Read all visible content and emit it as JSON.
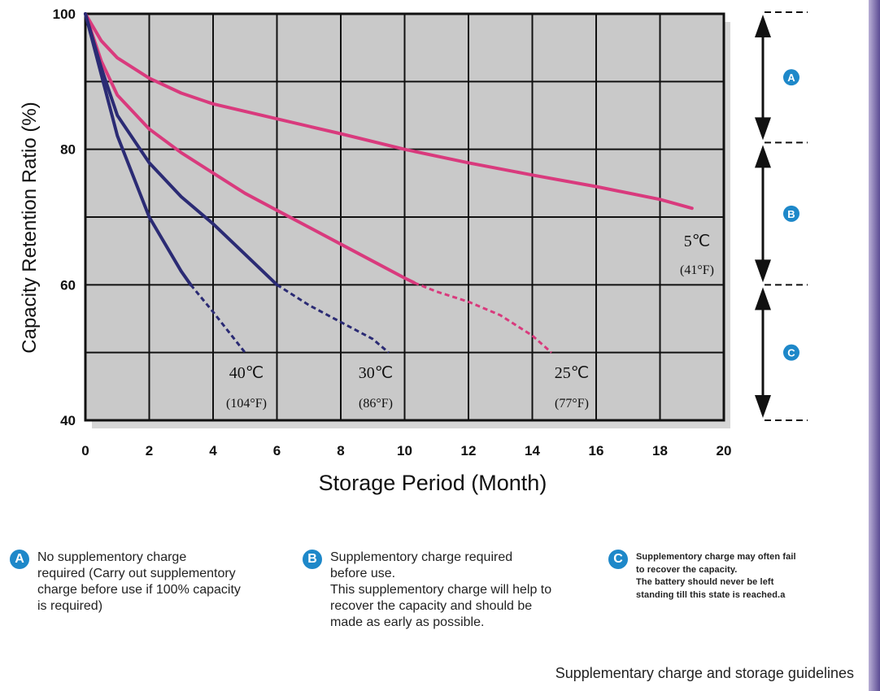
{
  "chart_data": {
    "type": "line",
    "xlabel": "Storage Period (Month)",
    "ylabel": "Capacity Retention Ratio (%)",
    "xlim": [
      0,
      20
    ],
    "ylim": [
      40,
      100
    ],
    "x_ticks": [
      "0",
      "2",
      "4",
      "6",
      "8",
      "10",
      "12",
      "14",
      "16",
      "18",
      "20"
    ],
    "y_ticks": [
      "40",
      "60",
      "80",
      "100"
    ],
    "grid": true,
    "series": [
      {
        "name": "5℃ (41°F)",
        "temp_label": "5℃",
        "f_label": "(41°F)",
        "color": "#d93a7d",
        "points": [
          [
            0,
            100
          ],
          [
            0.5,
            96
          ],
          [
            1,
            93.5
          ],
          [
            2,
            90.5
          ],
          [
            3,
            88.3
          ],
          [
            4,
            86.7
          ],
          [
            6,
            84.5
          ],
          [
            8,
            82.3
          ],
          [
            10,
            80
          ],
          [
            12,
            78
          ],
          [
            14,
            76.2
          ],
          [
            16,
            74.5
          ],
          [
            18,
            72.6
          ],
          [
            19,
            71.3
          ]
        ],
        "dashed_points": []
      },
      {
        "name": "25℃ (77°F)",
        "temp_label": "25℃",
        "f_label": "(77°F)",
        "color": "#d93a7d",
        "points": [
          [
            0,
            100
          ],
          [
            0.5,
            93
          ],
          [
            1,
            88
          ],
          [
            2,
            83
          ],
          [
            3,
            79.5
          ],
          [
            4,
            76.5
          ],
          [
            5,
            73.5
          ],
          [
            6,
            71
          ],
          [
            7,
            68.5
          ],
          [
            8,
            66
          ],
          [
            9,
            63.5
          ],
          [
            10,
            61
          ],
          [
            10.3,
            60.3
          ]
        ],
        "dashed_points": [
          [
            10.3,
            60.3
          ],
          [
            11,
            59
          ],
          [
            12,
            57.5
          ],
          [
            13,
            55.5
          ],
          [
            14,
            52.5
          ],
          [
            14.6,
            50
          ]
        ]
      },
      {
        "name": "30℃ (86°F)",
        "temp_label": "30℃",
        "f_label": "(86°F)",
        "color": "#2b2b74",
        "points": [
          [
            0,
            100
          ],
          [
            0.5,
            92
          ],
          [
            1,
            85
          ],
          [
            2,
            78
          ],
          [
            3,
            73
          ],
          [
            4,
            69
          ],
          [
            5,
            64.5
          ],
          [
            6,
            60
          ]
        ],
        "dashed_points": [
          [
            6,
            60
          ],
          [
            7,
            57
          ],
          [
            8,
            54.5
          ],
          [
            9,
            52
          ],
          [
            9.5,
            50
          ]
        ]
      },
      {
        "name": "40℃ (104°F)",
        "temp_label": "40℃",
        "f_label": "(104°F)",
        "color": "#2b2b74",
        "points": [
          [
            0,
            100
          ],
          [
            0.5,
            91
          ],
          [
            1,
            82
          ],
          [
            2,
            70
          ],
          [
            3,
            62
          ],
          [
            3.3,
            60
          ]
        ],
        "dashed_points": [
          [
            3.3,
            60
          ],
          [
            4,
            56
          ],
          [
            4.5,
            53
          ],
          [
            5,
            50
          ]
        ]
      }
    ],
    "zones": [
      {
        "letter": "A",
        "from": 100,
        "to": 81
      },
      {
        "letter": "B",
        "from": 81,
        "to": 60
      },
      {
        "letter": "C",
        "from": 60,
        "to": 40
      }
    ],
    "background_color": "#c9c9c9",
    "caption": "Supplementary charge and storage guidelines"
  },
  "legend": {
    "a": {
      "letter": "A",
      "lines": [
        "No supplementory charge",
        "required (Carry out supplementory",
        "charge before use if 100% capacity",
        "is required)"
      ]
    },
    "b": {
      "letter": "B",
      "lines": [
        "Supplementory charge required",
        "before use.",
        "This supplementory charge will help to",
        "recover  the capacity and should be",
        "made as early as possible."
      ]
    },
    "c": {
      "letter": "C",
      "lines": [
        "Supplementory charge may often fail",
        "to recover the capacity.",
        "The battery should never be left",
        "standing till this state is reached.a"
      ]
    }
  },
  "badge_color": "#1e88c9"
}
